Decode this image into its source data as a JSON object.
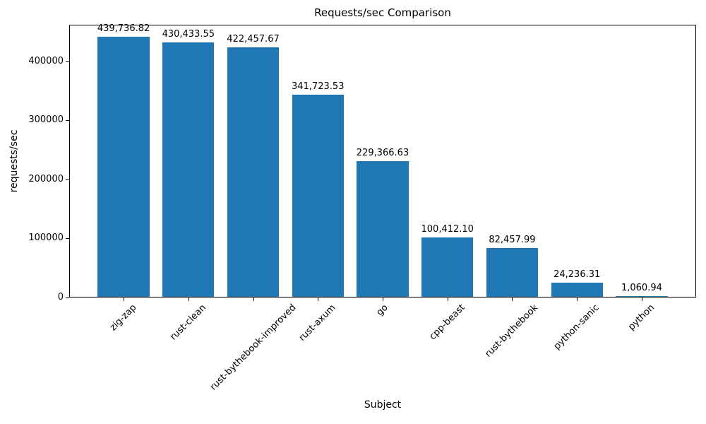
{
  "chart_data": {
    "type": "bar",
    "title": "Requests/sec Comparison",
    "xlabel": "Subject",
    "ylabel": "requests/sec",
    "categories": [
      "zig-zap",
      "rust-clean",
      "rust-bythebook-improved",
      "rust-axum",
      "go",
      "cpp-beast",
      "rust-bythebook",
      "python-sanic",
      "python"
    ],
    "values": [
      439736.82,
      430433.55,
      422457.67,
      341723.53,
      229366.63,
      100412.1,
      82457.99,
      24236.31,
      1060.94
    ],
    "value_labels": [
      "439,736.82",
      "430,433.55",
      "422,457.67",
      "341,723.53",
      "229,366.63",
      "100,412.10",
      "82,457.99",
      "24,236.31",
      "1,060.94"
    ],
    "yticks": [
      0,
      100000,
      200000,
      300000,
      400000
    ],
    "ytick_labels": [
      "0",
      "100000",
      "200000",
      "300000",
      "400000"
    ],
    "ylim": [
      0,
      461723.66
    ],
    "bar_color": "#1f77b4",
    "text_color": "#000000",
    "grid": false,
    "legend_position": "none"
  }
}
